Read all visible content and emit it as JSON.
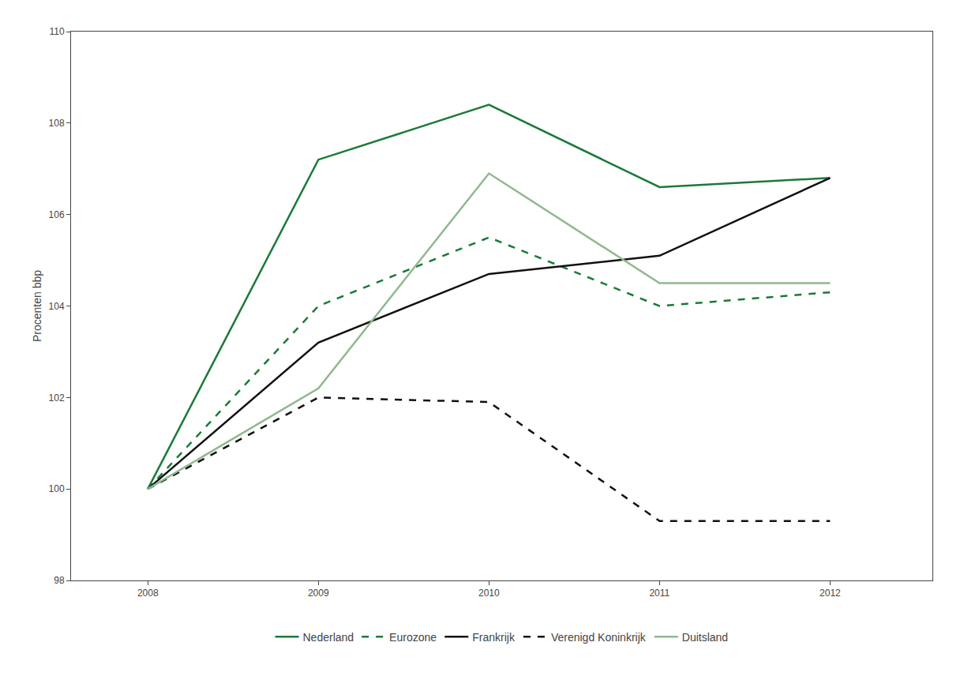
{
  "chart_data": {
    "type": "line",
    "x": [
      2008,
      2009,
      2010,
      2011,
      2012
    ],
    "series": [
      {
        "name": "Nederland",
        "color": "#1a7a3a",
        "line_style": "solid",
        "values": [
          100.0,
          107.2,
          108.4,
          106.6,
          106.8
        ]
      },
      {
        "name": "Eurozone",
        "color": "#1a7a3a",
        "line_style": "dashed",
        "values": [
          100.0,
          104.0,
          105.5,
          104.0,
          104.3
        ]
      },
      {
        "name": "Frankrijk",
        "color": "#111111",
        "line_style": "solid",
        "values": [
          100.0,
          103.2,
          104.7,
          105.1,
          106.8
        ]
      },
      {
        "name": "Verenigd Koninkrijk",
        "color": "#111111",
        "line_style": "dashed",
        "values": [
          100.0,
          102.0,
          101.9,
          99.3,
          99.3
        ]
      },
      {
        "name": "Duitsland",
        "color": "#90b890",
        "line_style": "solid",
        "values": [
          100.0,
          102.2,
          106.9,
          104.5,
          104.5
        ]
      }
    ],
    "xlim": [
      2007.55,
      2012.6
    ],
    "xticks": [
      2008,
      2009,
      2010,
      2011,
      2012
    ],
    "ylim": [
      98,
      110
    ],
    "yticks": [
      98,
      100,
      102,
      104,
      106,
      108,
      110
    ],
    "y_label": "Procenten bbp",
    "grid": false,
    "legend": "bottom"
  }
}
